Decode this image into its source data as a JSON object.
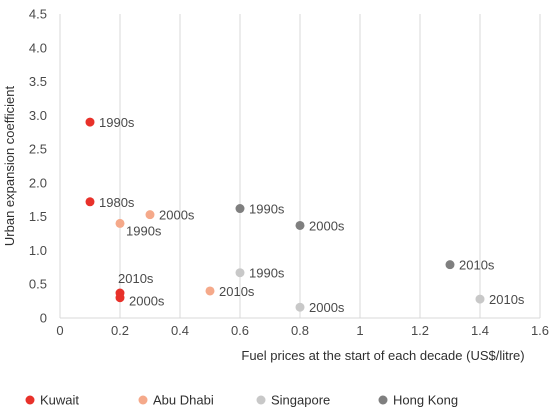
{
  "chart_data": {
    "type": "scatter",
    "xlabel": "Fuel prices at the start of each decade (US$/litre)",
    "ylabel": "Urban expansion coefficient",
    "xlim": [
      0,
      1.6
    ],
    "ylim": [
      0,
      4.5
    ],
    "xticks": [
      0,
      0.2,
      0.4,
      0.6,
      0.8,
      1.0,
      1.2,
      1.4,
      1.6
    ],
    "xtick_labels": [
      "0",
      "0.2",
      "0.4",
      "0.6",
      "0.8",
      "1",
      "1.2",
      "1.4",
      "1.6"
    ],
    "yticks": [
      0,
      0.5,
      1.0,
      1.5,
      2.0,
      2.5,
      3.0,
      3.5,
      4.0,
      4.5
    ],
    "ytick_labels": [
      "0",
      "0.5",
      "1.0",
      "1.5",
      "2.0",
      "2.5",
      "3.0",
      "3.5",
      "4.0",
      "4.5"
    ],
    "grid": "vertical",
    "legend_position": "bottom",
    "series": [
      {
        "name": "Kuwait",
        "color": "#e8312a",
        "points": [
          {
            "x": 0.1,
            "y": 2.9,
            "label": "1990s"
          },
          {
            "x": 0.1,
            "y": 1.72,
            "label": "1980s"
          },
          {
            "x": 0.2,
            "y": 0.37,
            "label": "2010s"
          },
          {
            "x": 0.2,
            "y": 0.3,
            "label": "2000s"
          }
        ]
      },
      {
        "name": "Abu Dhabi",
        "color": "#f5a98a",
        "points": [
          {
            "x": 0.3,
            "y": 1.53,
            "label": "2000s"
          },
          {
            "x": 0.2,
            "y": 1.4,
            "label": "1990s"
          },
          {
            "x": 0.5,
            "y": 0.4,
            "label": "2010s"
          }
        ]
      },
      {
        "name": "Singapore",
        "color": "#c8c8c8",
        "points": [
          {
            "x": 0.6,
            "y": 0.67,
            "label": "1990s"
          },
          {
            "x": 0.8,
            "y": 0.16,
            "label": "2000s"
          },
          {
            "x": 1.4,
            "y": 0.28,
            "label": "2010s"
          }
        ]
      },
      {
        "name": "Hong Kong",
        "color": "#7f7f7f",
        "points": [
          {
            "x": 0.6,
            "y": 1.62,
            "label": "1990s"
          },
          {
            "x": 0.8,
            "y": 1.37,
            "label": "2000s"
          },
          {
            "x": 1.3,
            "y": 0.79,
            "label": "2010s"
          }
        ]
      }
    ]
  }
}
